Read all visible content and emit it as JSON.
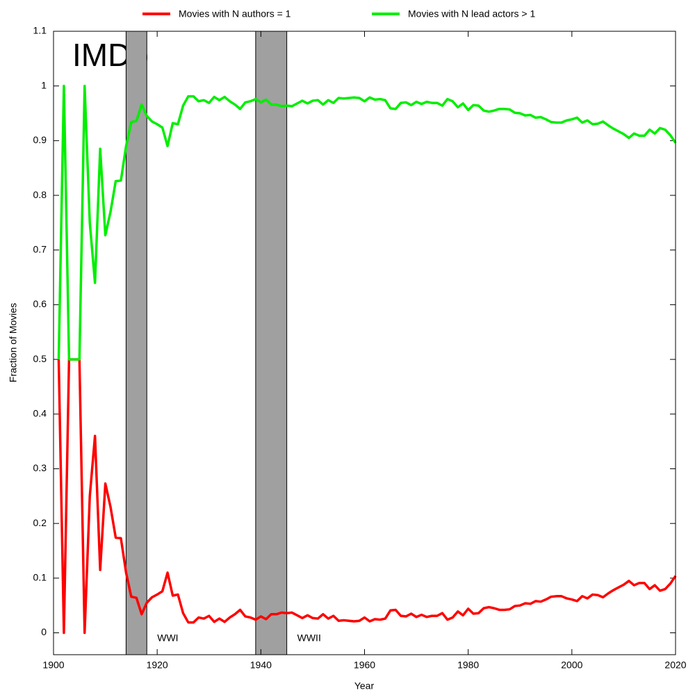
{
  "chart_data": {
    "type": "line",
    "x_label": "Year",
    "y_label": "Fraction of Movies",
    "x": [
      1901,
      1902,
      1903,
      1904,
      1905,
      1906,
      1907,
      1908,
      1909,
      1910,
      1911,
      1912,
      1913,
      1914,
      1915,
      1916,
      1917,
      1918,
      1919,
      1920,
      1921,
      1922,
      1923,
      1924,
      1925,
      1926,
      1927,
      1928,
      1929,
      1930,
      1931,
      1932,
      1933,
      1934,
      1935,
      1936,
      1937,
      1938,
      1939,
      1940,
      1941,
      1942,
      1943,
      1944,
      1945,
      1946,
      1947,
      1948,
      1949,
      1950,
      1951,
      1952,
      1953,
      1954,
      1955,
      1956,
      1957,
      1958,
      1959,
      1960,
      1961,
      1962,
      1963,
      1964,
      1965,
      1966,
      1967,
      1968,
      1969,
      1970,
      1971,
      1972,
      1973,
      1974,
      1975,
      1976,
      1977,
      1978,
      1979,
      1980,
      1981,
      1982,
      1983,
      1984,
      1985,
      1986,
      1987,
      1988,
      1989,
      1990,
      1991,
      1992,
      1993,
      1994,
      1995,
      1996,
      1997,
      1998,
      1999,
      2000,
      2001,
      2002,
      2003,
      2004,
      2005,
      2006,
      2007,
      2008,
      2009,
      2010,
      2011,
      2012,
      2013,
      2014,
      2015,
      2016,
      2017,
      2018,
      2019,
      2020
    ],
    "series": [
      {
        "name": "Movies with N authors = 1",
        "color": "#ff0000",
        "values": [
          0.5,
          0,
          0.5,
          0.5,
          0.5,
          0,
          0.25,
          0.36,
          0.115,
          0.273,
          0.23,
          0.174,
          0.173,
          0.11,
          0.066,
          0.064,
          0.034,
          0.055,
          0.065,
          0.07,
          0.076,
          0.11,
          0.068,
          0.07,
          0.036,
          0.019,
          0.019,
          0.028,
          0.026,
          0.031,
          0.02,
          0.026,
          0.02,
          0.028,
          0.034,
          0.042,
          0.03,
          0.028,
          0.024,
          0.03,
          0.025,
          0.034,
          0.034,
          0.037,
          0.036,
          0.037,
          0.032,
          0.027,
          0.032,
          0.027,
          0.026,
          0.034,
          0.026,
          0.031,
          0.022,
          0.023,
          0.022,
          0.021,
          0.022,
          0.028,
          0.021,
          0.025,
          0.024,
          0.026,
          0.041,
          0.042,
          0.031,
          0.03,
          0.035,
          0.029,
          0.033,
          0.029,
          0.031,
          0.031,
          0.036,
          0.024,
          0.028,
          0.039,
          0.032,
          0.044,
          0.035,
          0.036,
          0.045,
          0.047,
          0.045,
          0.042,
          0.042,
          0.043,
          0.049,
          0.05,
          0.054,
          0.053,
          0.058,
          0.057,
          0.061,
          0.066,
          0.067,
          0.067,
          0.063,
          0.061,
          0.058,
          0.067,
          0.063,
          0.07,
          0.069,
          0.065,
          0.072,
          0.078,
          0.083,
          0.088,
          0.095,
          0.087,
          0.091,
          0.091,
          0.08,
          0.087,
          0.077,
          0.08,
          0.09,
          0.104
        ]
      },
      {
        "name": "Movies with N lead actors > 1",
        "color": "#00ee00",
        "values": [
          0.5,
          1,
          0.5,
          0.5,
          0.5,
          1,
          0.75,
          0.64,
          0.885,
          0.727,
          0.77,
          0.826,
          0.827,
          0.89,
          0.934,
          0.936,
          0.966,
          0.945,
          0.935,
          0.93,
          0.924,
          0.89,
          0.932,
          0.93,
          0.964,
          0.981,
          0.981,
          0.972,
          0.974,
          0.969,
          0.98,
          0.974,
          0.98,
          0.972,
          0.966,
          0.958,
          0.97,
          0.972,
          0.976,
          0.97,
          0.975,
          0.966,
          0.966,
          0.963,
          0.964,
          0.963,
          0.968,
          0.973,
          0.968,
          0.973,
          0.974,
          0.966,
          0.974,
          0.969,
          0.978,
          0.977,
          0.978,
          0.979,
          0.978,
          0.972,
          0.979,
          0.975,
          0.976,
          0.974,
          0.959,
          0.958,
          0.969,
          0.97,
          0.965,
          0.971,
          0.967,
          0.971,
          0.969,
          0.969,
          0.964,
          0.976,
          0.972,
          0.961,
          0.968,
          0.956,
          0.965,
          0.964,
          0.955,
          0.953,
          0.955,
          0.958,
          0.958,
          0.957,
          0.951,
          0.95,
          0.946,
          0.947,
          0.942,
          0.943,
          0.939,
          0.934,
          0.933,
          0.933,
          0.937,
          0.939,
          0.942,
          0.933,
          0.937,
          0.93,
          0.931,
          0.935,
          0.928,
          0.922,
          0.917,
          0.912,
          0.905,
          0.913,
          0.909,
          0.909,
          0.92,
          0.913,
          0.923,
          0.92,
          0.91,
          0.896
        ]
      }
    ],
    "xlim": [
      1900,
      2020
    ],
    "ylim": [
      -0.04,
      1.1
    ],
    "xticks": [
      1900,
      1920,
      1940,
      1960,
      1980,
      2000,
      2020
    ],
    "yticks": [
      0,
      0.1,
      0.2,
      0.3,
      0.4,
      0.5,
      0.6,
      0.7,
      0.8,
      0.9,
      1,
      1.1
    ],
    "shaded_regions": [
      {
        "label": "WWI",
        "start": 1914,
        "end": 1918,
        "color": "#a0a0a0"
      },
      {
        "label": "WWII",
        "start": 1939,
        "end": 1945,
        "color": "#a0a0a0"
      }
    ],
    "annotation": "IMDb",
    "legend": "top"
  }
}
